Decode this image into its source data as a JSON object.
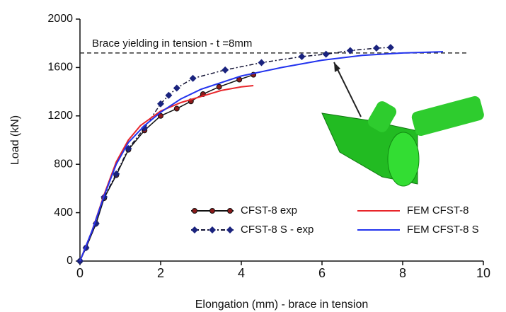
{
  "chart_data": {
    "type": "line",
    "x_label": "Elongation (mm) - brace in tension",
    "y_label": "Load (kN)",
    "xlim": [
      0,
      10
    ],
    "xticks": [
      0,
      2,
      4,
      6,
      8,
      10
    ],
    "ylim": [
      0,
      2000
    ],
    "yticks": [
      0,
      400,
      800,
      1200,
      1600,
      2000
    ],
    "reference_line": {
      "y": 1720,
      "label": "Brace yielding in tension - t =8mm"
    },
    "series": [
      {
        "name": "CFST-8 exp",
        "color": "#111111",
        "marker_color": "#8b1a1a",
        "marker": "circle",
        "dash": false,
        "x": [
          0,
          0.15,
          0.4,
          0.6,
          0.9,
          1.2,
          1.6,
          2.0,
          2.4,
          2.75,
          3.05,
          3.45,
          3.95,
          4.3
        ],
        "values": [
          0,
          110,
          310,
          520,
          710,
          920,
          1080,
          1200,
          1260,
          1320,
          1380,
          1440,
          1500,
          1540
        ]
      },
      {
        "name": "CFST-8 S - exp",
        "color": "#111133",
        "marker_color": "#1a237e",
        "marker": "diamond",
        "dash": true,
        "x": [
          0,
          0.15,
          0.4,
          0.6,
          0.9,
          1.2,
          1.6,
          2.0,
          2.2,
          2.4,
          2.8,
          3.6,
          4.5,
          5.5,
          6.1,
          6.7,
          7.35,
          7.7
        ],
        "values": [
          0,
          110,
          310,
          530,
          720,
          930,
          1100,
          1300,
          1370,
          1430,
          1510,
          1580,
          1640,
          1690,
          1710,
          1740,
          1760,
          1765
        ]
      },
      {
        "name": "FEM CFST-8",
        "color": "#e8252a",
        "marker": "none",
        "dash": false,
        "x": [
          0,
          0.3,
          0.6,
          0.9,
          1.2,
          1.5,
          2.0,
          2.5,
          3.0,
          3.5,
          4.0,
          4.3
        ],
        "values": [
          0,
          250,
          550,
          820,
          1000,
          1120,
          1240,
          1310,
          1360,
          1410,
          1440,
          1450
        ]
      },
      {
        "name": "FEM CFST-8 S",
        "color": "#2233ee",
        "marker": "none",
        "dash": false,
        "x": [
          0,
          0.3,
          0.6,
          0.9,
          1.2,
          1.6,
          2.0,
          2.5,
          3.0,
          4.0,
          5.0,
          6.0,
          7.0,
          8.0,
          9.0
        ],
        "values": [
          0,
          250,
          540,
          800,
          980,
          1120,
          1230,
          1340,
          1420,
          1530,
          1600,
          1660,
          1700,
          1720,
          1730
        ]
      }
    ]
  }
}
